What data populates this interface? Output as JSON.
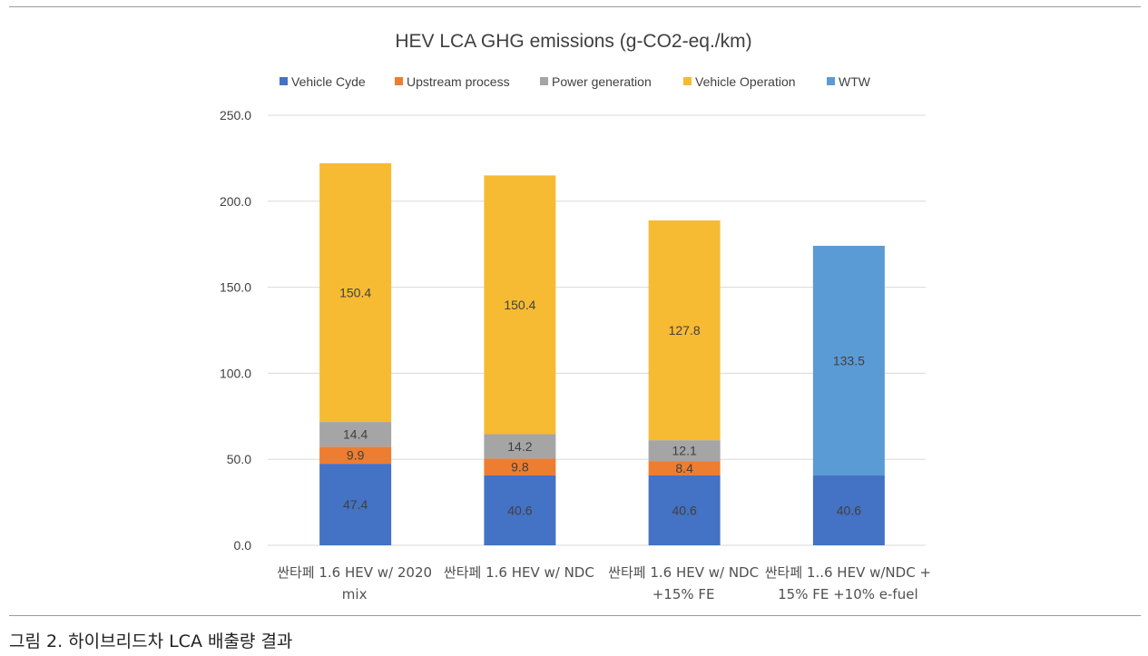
{
  "caption": "그림 2. 하이브리드차 LCA 배출량 결과",
  "chart_data": {
    "type": "bar",
    "stacked": true,
    "title": "HEV LCA GHG emissions (g-CO2-eq./km)",
    "xlabel": "",
    "ylabel": "",
    "ylim": [
      0,
      250
    ],
    "yticks": [
      "0.0",
      "50.0",
      "100.0",
      "150.0",
      "200.0",
      "250.0"
    ],
    "grid": true,
    "legend_position": "top",
    "categories": [
      [
        "싼타페 1.6 HEV w/ 2020",
        "mix"
      ],
      [
        "싼타페 1.6 HEV w/ NDC"
      ],
      [
        "싼타페 1.6 HEV w/ NDC",
        "+15% FE"
      ],
      [
        "싼타페 1..6 HEV w/NDC +",
        "15% FE +10% e-fuel"
      ]
    ],
    "series": [
      {
        "name": "Vehicle Cyde",
        "color": "#4472C4",
        "values": [
          47.4,
          40.6,
          40.6,
          40.6
        ]
      },
      {
        "name": "Upstream process",
        "color": "#ED7D31",
        "values": [
          9.9,
          9.8,
          8.4,
          null
        ]
      },
      {
        "name": "Power generation",
        "color": "#A5A5A5",
        "values": [
          14.4,
          14.2,
          12.1,
          null
        ]
      },
      {
        "name": "Vehicle Operation",
        "color": "#F6BB33",
        "values": [
          150.4,
          150.4,
          127.8,
          null
        ]
      },
      {
        "name": "WTW",
        "color": "#5B9BD5",
        "values": [
          null,
          null,
          null,
          133.5
        ]
      }
    ]
  }
}
